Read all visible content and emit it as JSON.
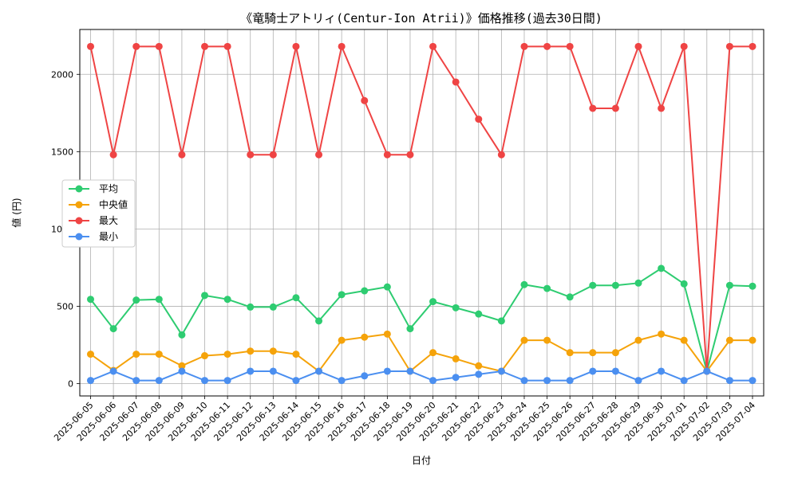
{
  "chart_data": {
    "type": "line",
    "title": "《竜騎士アトリィ(Centur-Ion Atrii)》価格推移(過去30日間)",
    "xlabel": "日付",
    "ylabel": "値 (円)",
    "ylim": [
      -80,
      2290
    ],
    "yticks": [
      0,
      500,
      1000,
      1500,
      2000
    ],
    "grid": true,
    "legend_position": "center-left",
    "categories": [
      "2025-06-05",
      "2025-06-06",
      "2025-06-07",
      "2025-06-08",
      "2025-06-09",
      "2025-06-10",
      "2025-06-11",
      "2025-06-12",
      "2025-06-13",
      "2025-06-14",
      "2025-06-15",
      "2025-06-16",
      "2025-06-17",
      "2025-06-18",
      "2025-06-19",
      "2025-06-20",
      "2025-06-21",
      "2025-06-22",
      "2025-06-23",
      "2025-06-24",
      "2025-06-25",
      "2025-06-26",
      "2025-06-27",
      "2025-06-28",
      "2025-06-29",
      "2025-06-30",
      "2025-07-01",
      "2025-07-02",
      "2025-07-03",
      "2025-07-04"
    ],
    "series": [
      {
        "name": "平均",
        "color": "#2ecc71",
        "values": [
          545,
          355,
          540,
          545,
          315,
          570,
          545,
          495,
          495,
          555,
          405,
          575,
          600,
          625,
          355,
          530,
          490,
          450,
          405,
          640,
          615,
          560,
          635,
          635,
          650,
          745,
          645,
          80,
          635,
          630
        ]
      },
      {
        "name": "中央値",
        "color": "#f5a30a",
        "values": [
          190,
          85,
          190,
          190,
          115,
          180,
          190,
          210,
          210,
          190,
          80,
          280,
          300,
          320,
          80,
          200,
          160,
          115,
          80,
          280,
          280,
          200,
          200,
          200,
          280,
          320,
          280,
          80,
          280,
          280
        ]
      },
      {
        "name": "最大",
        "color": "#ef4444",
        "values": [
          2180,
          1480,
          2180,
          2180,
          1480,
          2180,
          2180,
          1480,
          1480,
          2180,
          1480,
          2180,
          1830,
          1480,
          1480,
          2180,
          1950,
          1710,
          1480,
          2180,
          2180,
          2180,
          1780,
          1780,
          2180,
          1780,
          2180,
          80,
          2180,
          2180
        ]
      },
      {
        "name": "最小",
        "color": "#4b8ff0",
        "values": [
          20,
          80,
          20,
          20,
          80,
          20,
          20,
          80,
          80,
          20,
          80,
          20,
          50,
          80,
          80,
          20,
          40,
          60,
          80,
          20,
          20,
          20,
          80,
          80,
          20,
          80,
          20,
          80,
          20,
          20
        ]
      }
    ]
  }
}
